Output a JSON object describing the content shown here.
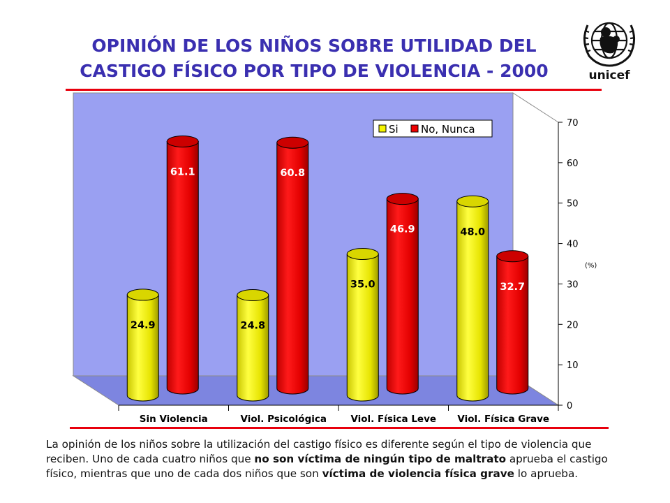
{
  "title": {
    "line1": "OPINIÓN DE LOS NIÑOS SOBRE UTILIDAD DEL",
    "line2": "CASTIGO FÍSICO POR TIPO DE VIOLENCIA - 2000"
  },
  "logo": {
    "text": "unicef",
    "icon": "unicef-emblem-icon"
  },
  "chart_data": {
    "type": "bar",
    "style": "3d-cylinder",
    "categories": [
      "Sin Violencia",
      "Viol. Psicológica",
      "Viol. Física Leve",
      "Viol. Física Grave"
    ],
    "series": [
      {
        "name": "Si",
        "color": "#f5f500",
        "values": [
          24.9,
          24.8,
          35.0,
          48.0
        ],
        "labels": [
          "24.9",
          "24.8",
          "35.0",
          "48.0"
        ]
      },
      {
        "name": "No, Nunca",
        "color": "#ee0000",
        "values": [
          61.1,
          60.8,
          46.9,
          32.7
        ],
        "labels": [
          "61.1",
          "60.8",
          "46.9",
          "32.7"
        ]
      }
    ],
    "ylim": [
      0,
      70
    ],
    "yticks": [
      "0",
      "10",
      "20",
      "30",
      "40",
      "50",
      "60",
      "70"
    ],
    "yunit": "(%)",
    "legend": "top-right",
    "grid": false,
    "wall_color": "#9aa0f2"
  },
  "description": {
    "p1": "La opinión de los niños sobre la utilización del castigo físico es diferente según el tipo de violencia que reciben. Uno de cada cuatro niños que ",
    "b1": "no son víctima de ningún tipo de maltrato",
    "p2": " aprueba el castigo físico, mientras que uno de cada dos niños que son ",
    "b2": "víctima de violencia física grave",
    "p3": " lo aprueba."
  }
}
